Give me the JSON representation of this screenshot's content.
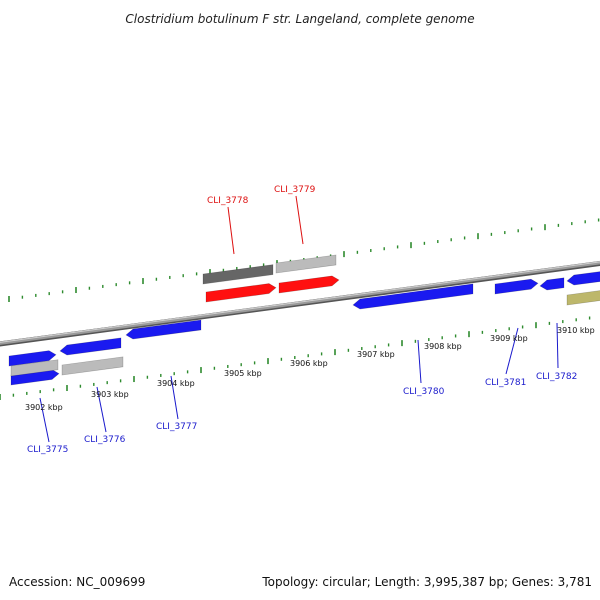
{
  "title": "Clostridium botulinum F str. Langeland, complete genome",
  "footer": {
    "accession": "Accession: NC_009699",
    "summary": "Topology: circular; Length: 3,995,387 bp; Genes: 3,781"
  },
  "colors": {
    "backbone": "#888888",
    "tick": "#2e8b2e",
    "gene_blue": "#1a1af0",
    "gene_red": "#ff1010",
    "gene_darkgray": "#666666",
    "gene_lightgray": "#bbbbbb",
    "gene_olive": "#bdb76b",
    "label_blue": "#1a1acc",
    "label_red": "#dd1111"
  },
  "scale_labels": [
    "3902 kbp",
    "3903 kbp",
    "3904 kbp",
    "3905 kbp",
    "3906 kbp",
    "3907 kbp",
    "3908 kbp",
    "3909 kbp",
    "3910 kbp"
  ],
  "gene_labels": [
    {
      "text": "CLI_3775",
      "color": "label_blue"
    },
    {
      "text": "CLI_3776",
      "color": "label_blue"
    },
    {
      "text": "CLI_3777",
      "color": "label_blue"
    },
    {
      "text": "CLI_3778",
      "color": "label_red"
    },
    {
      "text": "CLI_3779",
      "color": "label_red"
    },
    {
      "text": "CLI_3780",
      "color": "label_blue"
    },
    {
      "text": "CLI_3781",
      "color": "label_blue"
    },
    {
      "text": "CLI_3782",
      "color": "label_blue"
    }
  ]
}
